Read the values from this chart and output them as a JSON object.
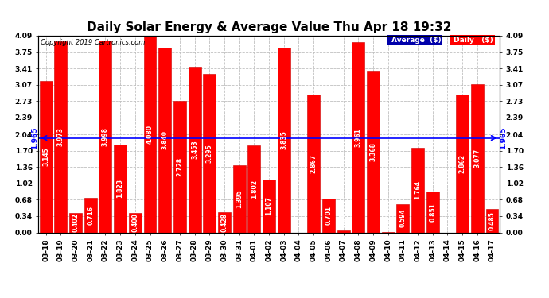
{
  "title": "Daily Solar Energy & Average Value Thu Apr 18 19:32",
  "copyright": "Copyright 2019 Cartronics.com",
  "average_value": 1.965,
  "average_label": "1.965",
  "categories": [
    "03-18",
    "03-19",
    "03-20",
    "03-21",
    "03-22",
    "03-23",
    "03-24",
    "03-25",
    "03-26",
    "03-27",
    "03-28",
    "03-29",
    "03-30",
    "03-31",
    "04-01",
    "04-02",
    "04-03",
    "04-04",
    "04-05",
    "04-06",
    "04-07",
    "04-08",
    "04-09",
    "04-10",
    "04-11",
    "04-12",
    "04-13",
    "04-14",
    "04-15",
    "04-16",
    "04-17"
  ],
  "values": [
    3.145,
    3.973,
    0.402,
    0.716,
    3.998,
    1.823,
    0.4,
    4.08,
    3.84,
    2.728,
    3.453,
    3.295,
    0.428,
    1.395,
    1.802,
    1.107,
    3.835,
    0.0,
    2.867,
    0.701,
    0.047,
    3.961,
    3.368,
    0.015,
    0.594,
    1.764,
    0.851,
    0.0,
    2.862,
    3.077,
    0.485
  ],
  "bar_color": "#FF0000",
  "bar_edge_color": "#CC0000",
  "avg_line_color": "#0000FF",
  "background_color": "#FFFFFF",
  "grid_color": "#C0C0C0",
  "ylim": [
    0.0,
    4.09
  ],
  "yticks": [
    0.0,
    0.34,
    0.68,
    1.02,
    1.36,
    1.7,
    2.04,
    2.39,
    2.73,
    3.07,
    3.41,
    3.75,
    4.09
  ],
  "title_fontsize": 11,
  "label_fontsize": 5.5,
  "tick_fontsize": 6.5,
  "legend_avg_color": "#0000AA",
  "legend_daily_color": "#FF0000"
}
